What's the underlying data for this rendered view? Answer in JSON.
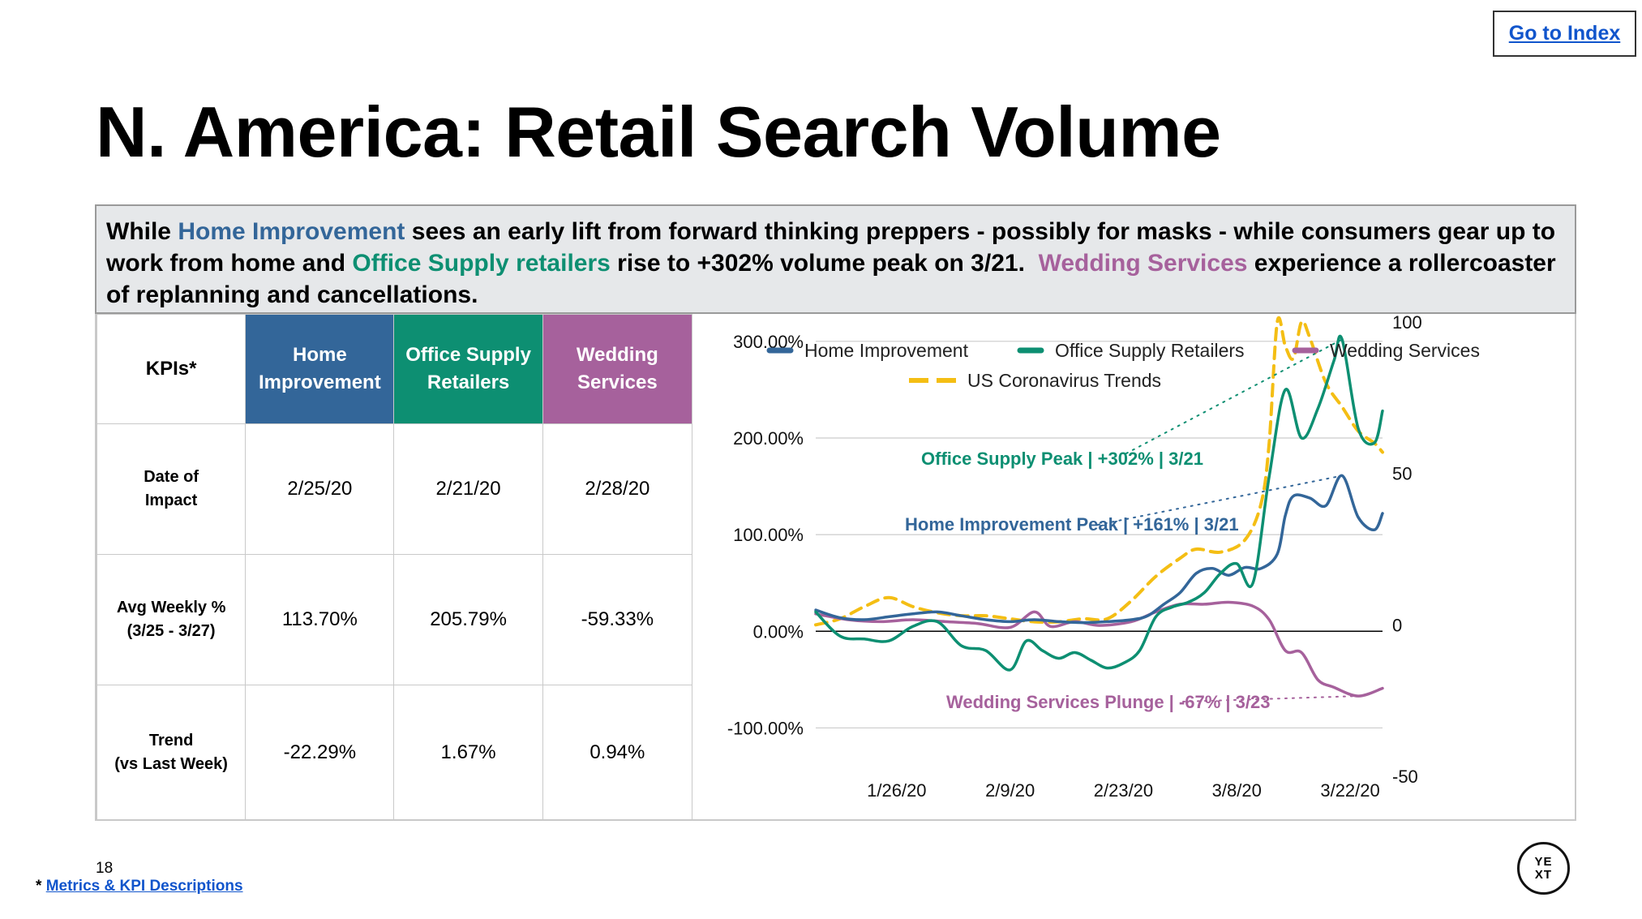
{
  "nav": {
    "index_link": "Go to Index"
  },
  "title": "N. America: Retail Search Volume",
  "colors": {
    "home_improvement": "#336699",
    "office_supply": "#0d8f72",
    "wedding": "#a6619c",
    "coronavirus": "#f4be14"
  },
  "summary": {
    "p1": "While ",
    "home": "Home Improvement",
    "p2": " sees an early lift from forward thinking preppers - possibly for masks - while consumers gear up to work from home and ",
    "office": "Office Supply retailers",
    "p3": " rise to +302% volume peak on 3/21.  ",
    "wedding": "Wedding Services",
    "p4": " experience a rollercoaster of replanning and cancellations."
  },
  "kpi_table": {
    "corner": "KPIs*",
    "columns": [
      "Home Improvement",
      "Office Supply Retailers",
      "Wedding Services"
    ],
    "rows": [
      {
        "label_line1": "Date of",
        "label_line2": "Impact",
        "values": [
          "2/25/20",
          "2/21/20",
          "2/28/20"
        ]
      },
      {
        "label_line1": "Avg Weekly %",
        "label_line2": "(3/25 - 3/27)",
        "values": [
          "113.70%",
          "205.79%",
          "-59.33%"
        ]
      },
      {
        "label_line1": "Trend",
        "label_line2": "(vs Last Week)",
        "values": [
          "-22.29%",
          "1.67%",
          "0.94%"
        ]
      }
    ]
  },
  "chart_data": {
    "type": "line",
    "title": "",
    "legend": {
      "placement": "top",
      "entries": [
        "Home Improvement",
        "Office Supply Retailers",
        "Wedding Services",
        "US Coronavirus Trends"
      ]
    },
    "x_ticks": [
      "1/26/20",
      "2/9/20",
      "2/23/20",
      "3/8/20",
      "3/22/20"
    ],
    "x_range": [
      "1/16/20",
      "3/26/20"
    ],
    "y_left": {
      "ticks": [
        "300.00%",
        "200.00%",
        "100.00%",
        "0.00%",
        "-100.00%"
      ],
      "range": [
        -150,
        320
      ]
    },
    "y_right": {
      "ticks": [
        "100",
        "50",
        "0",
        "-50"
      ],
      "range": [
        -50,
        100
      ]
    },
    "grid": true,
    "series": [
      {
        "name": "Home Improvement",
        "axis": "left",
        "color": "#336699",
        "dashed": false,
        "points": [
          [
            "1/16/20",
            22
          ],
          [
            "1/19/20",
            14
          ],
          [
            "1/22/20",
            12
          ],
          [
            "1/25/20",
            15
          ],
          [
            "1/28/20",
            18
          ],
          [
            "1/31/20",
            20
          ],
          [
            "2/3/20",
            16
          ],
          [
            "2/6/20",
            12
          ],
          [
            "2/9/20",
            10
          ],
          [
            "2/12/20",
            12
          ],
          [
            "2/15/20",
            10
          ],
          [
            "2/18/20",
            9
          ],
          [
            "2/21/20",
            10
          ],
          [
            "2/24/20",
            12
          ],
          [
            "2/26/20",
            16
          ],
          [
            "2/28/20",
            28
          ],
          [
            "3/1/20",
            40
          ],
          [
            "3/3/20",
            60
          ],
          [
            "3/5/20",
            65
          ],
          [
            "3/7/20",
            58
          ],
          [
            "3/9/20",
            66
          ],
          [
            "3/11/20",
            65
          ],
          [
            "3/13/20",
            80
          ],
          [
            "3/14/20",
            120
          ],
          [
            "3/15/20",
            140
          ],
          [
            "3/17/20",
            138
          ],
          [
            "3/19/20",
            130
          ],
          [
            "3/21/20",
            161
          ],
          [
            "3/23/20",
            118
          ],
          [
            "3/25/20",
            105
          ],
          [
            "3/26/20",
            122
          ]
        ]
      },
      {
        "name": "Office Supply Retailers",
        "axis": "left",
        "color": "#0d8f72",
        "dashed": false,
        "points": [
          [
            "1/16/20",
            20
          ],
          [
            "1/19/20",
            -5
          ],
          [
            "1/22/20",
            -8
          ],
          [
            "1/25/20",
            -10
          ],
          [
            "1/28/20",
            5
          ],
          [
            "1/31/20",
            10
          ],
          [
            "2/3/20",
            -15
          ],
          [
            "2/6/20",
            -20
          ],
          [
            "2/9/20",
            -40
          ],
          [
            "2/11/20",
            -10
          ],
          [
            "2/13/20",
            -20
          ],
          [
            "2/15/20",
            -28
          ],
          [
            "2/17/20",
            -22
          ],
          [
            "2/19/20",
            -30
          ],
          [
            "2/21/20",
            -38
          ],
          [
            "2/23/20",
            -33
          ],
          [
            "2/25/20",
            -20
          ],
          [
            "2/27/20",
            15
          ],
          [
            "2/29/20",
            25
          ],
          [
            "3/2/20",
            30
          ],
          [
            "3/4/20",
            40
          ],
          [
            "3/6/20",
            60
          ],
          [
            "3/8/20",
            70
          ],
          [
            "3/10/20",
            50
          ],
          [
            "3/12/20",
            160
          ],
          [
            "3/14/20",
            250
          ],
          [
            "3/16/20",
            200
          ],
          [
            "3/18/20",
            230
          ],
          [
            "3/20/20",
            280
          ],
          [
            "3/21/20",
            302
          ],
          [
            "3/23/20",
            210
          ],
          [
            "3/25/20",
            195
          ],
          [
            "3/26/20",
            228
          ]
        ]
      },
      {
        "name": "Wedding Services",
        "axis": "left",
        "color": "#a6619c",
        "dashed": false,
        "points": [
          [
            "1/16/20",
            18
          ],
          [
            "1/20/20",
            12
          ],
          [
            "1/24/20",
            10
          ],
          [
            "1/28/20",
            12
          ],
          [
            "2/1/20",
            10
          ],
          [
            "2/5/20",
            8
          ],
          [
            "2/9/20",
            4
          ],
          [
            "2/12/20",
            20
          ],
          [
            "2/14/20",
            5
          ],
          [
            "2/17/20",
            10
          ],
          [
            "2/20/20",
            6
          ],
          [
            "2/24/20",
            10
          ],
          [
            "2/27/20",
            20
          ],
          [
            "3/1/20",
            28
          ],
          [
            "3/4/20",
            28
          ],
          [
            "3/7/20",
            30
          ],
          [
            "3/10/20",
            26
          ],
          [
            "3/12/20",
            12
          ],
          [
            "3/14/20",
            -20
          ],
          [
            "3/16/20",
            -22
          ],
          [
            "3/18/20",
            -50
          ],
          [
            "3/20/20",
            -58
          ],
          [
            "3/23/20",
            -67
          ],
          [
            "3/26/20",
            -59
          ]
        ]
      },
      {
        "name": "US Coronavirus Trends",
        "axis": "right",
        "color": "#f4be14",
        "dashed": true,
        "points": [
          [
            "1/16/20",
            0
          ],
          [
            "1/19/20",
            2
          ],
          [
            "1/22/20",
            6
          ],
          [
            "1/25/20",
            9
          ],
          [
            "1/28/20",
            6
          ],
          [
            "1/31/20",
            4
          ],
          [
            "2/3/20",
            3
          ],
          [
            "2/6/20",
            3
          ],
          [
            "2/9/20",
            2
          ],
          [
            "2/12/20",
            1
          ],
          [
            "2/15/20",
            1
          ],
          [
            "2/18/20",
            2
          ],
          [
            "2/21/20",
            2
          ],
          [
            "2/24/20",
            8
          ],
          [
            "2/27/20",
            16
          ],
          [
            "3/1/20",
            22
          ],
          [
            "3/3/20",
            25
          ],
          [
            "3/6/20",
            24
          ],
          [
            "3/9/20",
            28
          ],
          [
            "3/11/20",
            40
          ],
          [
            "3/12/20",
            60
          ],
          [
            "3/13/20",
            100
          ],
          [
            "3/14/20",
            92
          ],
          [
            "3/15/20",
            88
          ],
          [
            "3/16/20",
            100
          ],
          [
            "3/17/20",
            95
          ],
          [
            "3/19/20",
            80
          ],
          [
            "3/21/20",
            72
          ],
          [
            "3/23/20",
            64
          ],
          [
            "3/25/20",
            60
          ],
          [
            "3/26/20",
            57
          ]
        ]
      }
    ],
    "annotations": [
      {
        "text": "Office Supply Peak | +302% | 3/21",
        "color": "#0d8f72",
        "target": [
          "3/21/20",
          302
        ]
      },
      {
        "text": "Home Improvement Peak | +161% | 3/21",
        "color": "#336699",
        "target": [
          "3/21/20",
          161
        ]
      },
      {
        "text": "Wedding Services Plunge | -67% | 3/23",
        "color": "#a6619c",
        "target": [
          "3/23/20",
          -67
        ]
      }
    ]
  },
  "footer": {
    "page_number": "18",
    "footnote_marker": "*",
    "footnote_link": "Metrics & KPI Descriptions"
  },
  "logo": {
    "line1": "YE",
    "line2": "XT"
  }
}
